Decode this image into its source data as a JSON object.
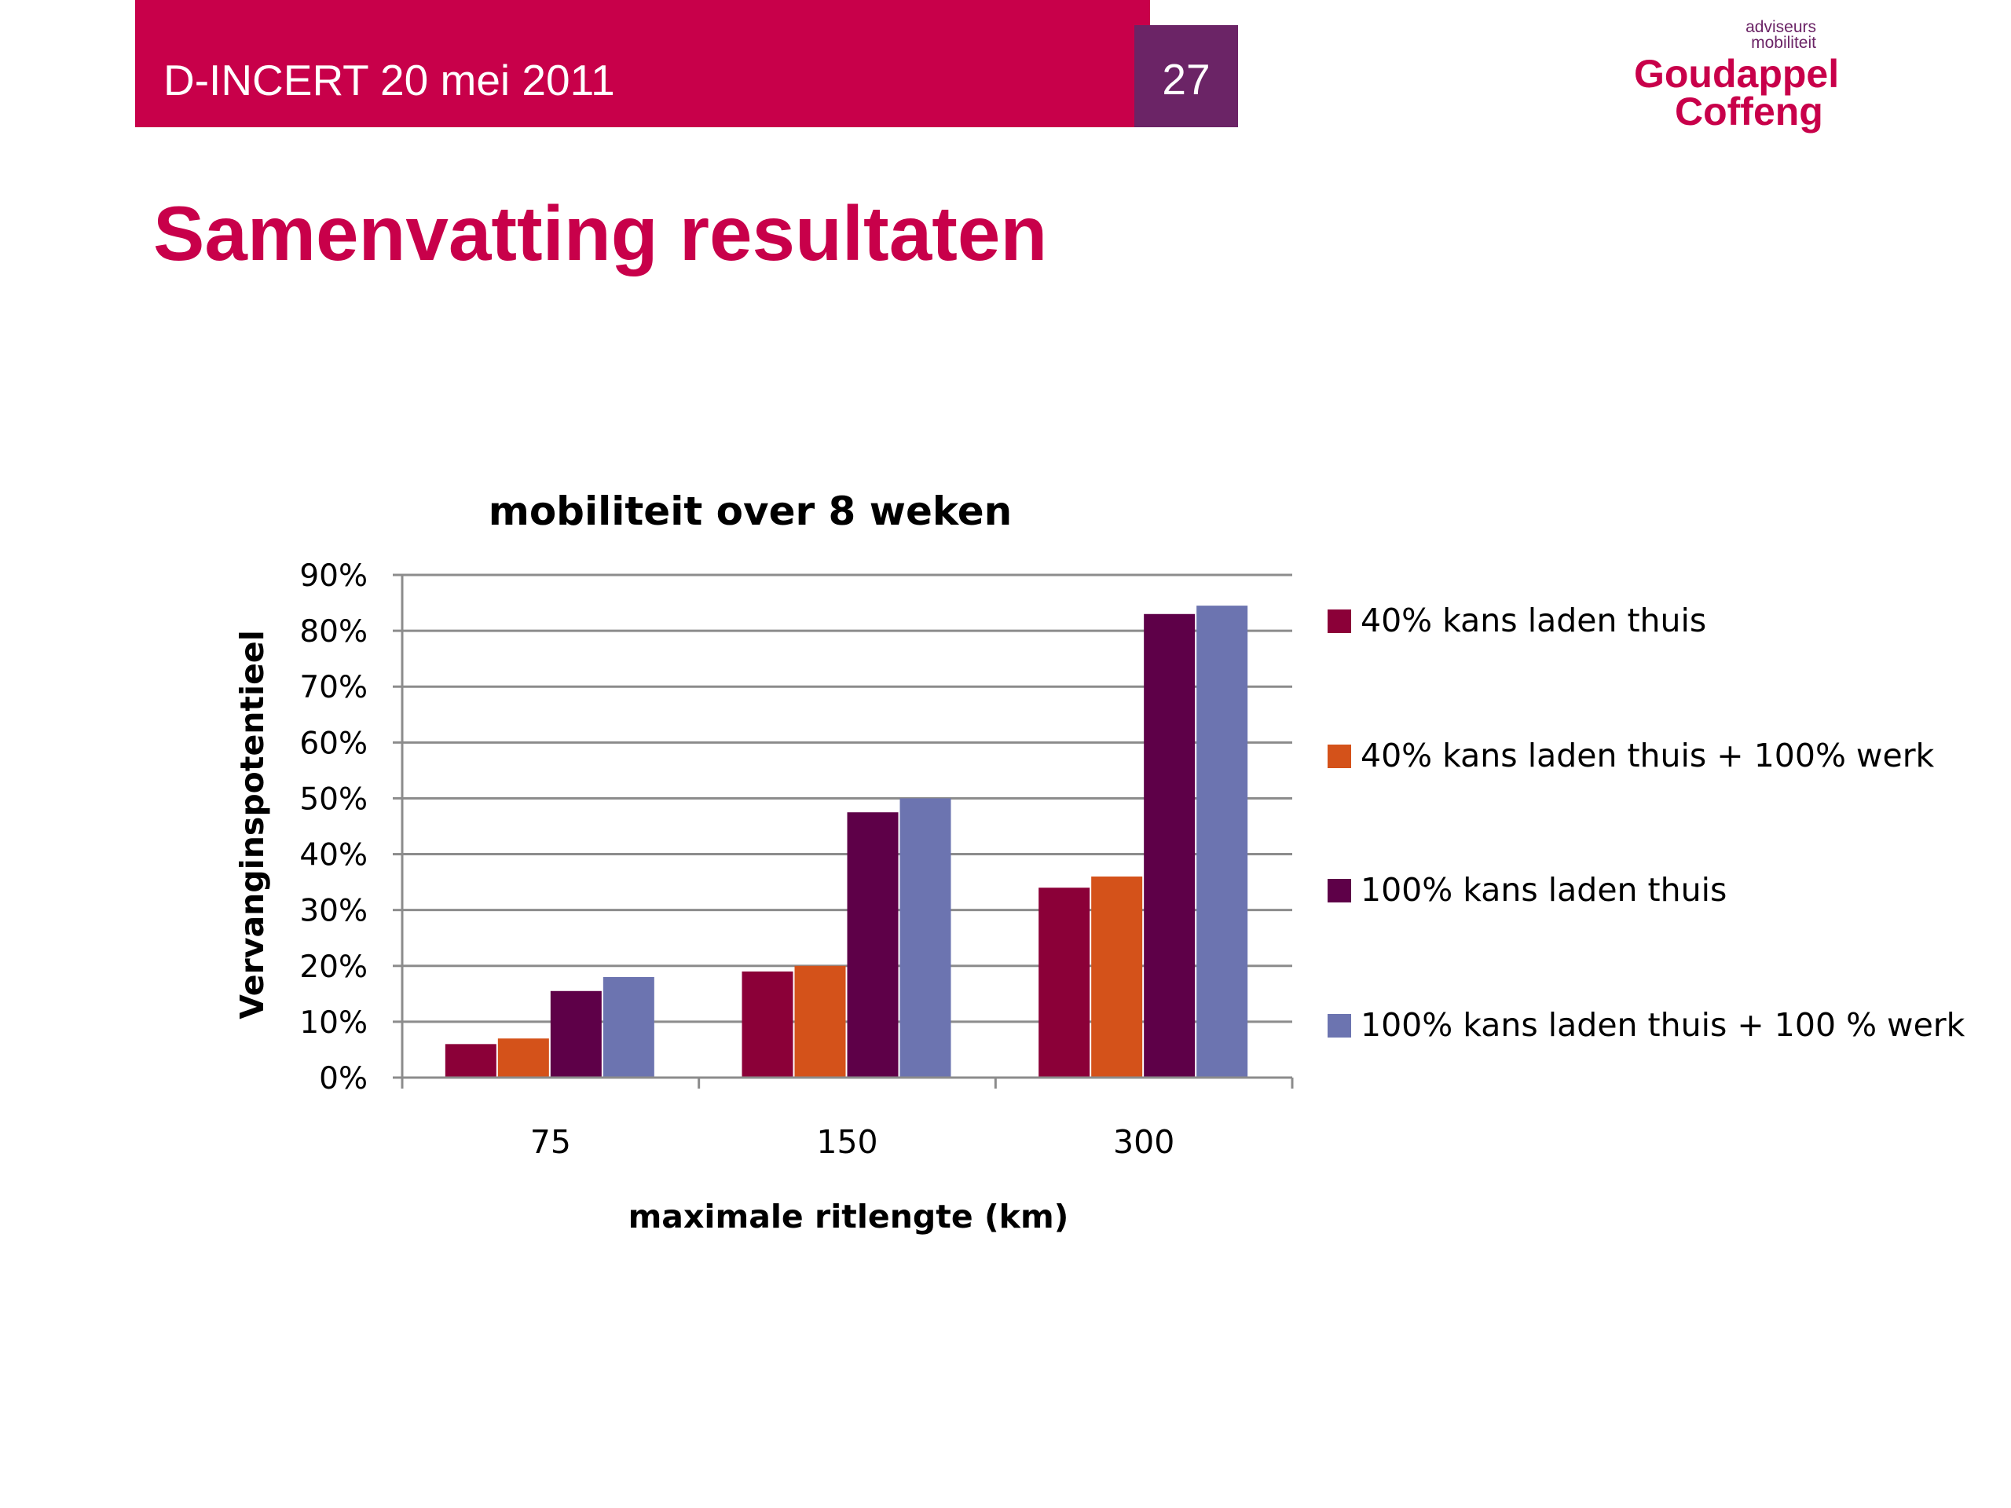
{
  "header": {
    "event": "D-INCERT 20 mei 2011",
    "page_number": "27"
  },
  "logo": {
    "line1": "adviseurs",
    "line2": "mobiliteit",
    "word1": "Goudappel",
    "word2": "Coffeng"
  },
  "slide_title": "Samenvatting resultaten",
  "colors": {
    "header": "#c8004a",
    "page_box": "#6b2466",
    "title": "#c8004a"
  },
  "chart_data": {
    "type": "bar",
    "title": "mobiliteit over 8 weken",
    "xlabel": "maximale ritlengte (km)",
    "ylabel": "Vervanginspotentieel",
    "categories": [
      "75",
      "150",
      "300"
    ],
    "ylim": [
      0,
      90
    ],
    "yticks": [
      "0%",
      "10%",
      "20%",
      "30%",
      "40%",
      "50%",
      "60%",
      "70%",
      "80%",
      "90%"
    ],
    "grid": true,
    "legend_position": "right",
    "series": [
      {
        "name": "40% kans laden thuis",
        "color": "#8b0038",
        "values": [
          6,
          19,
          34
        ]
      },
      {
        "name": "40% kans laden thuis  + 100% werk",
        "color": "#d4521a",
        "values": [
          7,
          20,
          36
        ]
      },
      {
        "name": "100% kans laden thuis",
        "color": "#5e0048",
        "values": [
          15.5,
          47.5,
          83
        ]
      },
      {
        "name": "100% kans laden thuis + 100 % werk",
        "color": "#6c74b0",
        "values": [
          18,
          50,
          84.5
        ]
      }
    ]
  }
}
